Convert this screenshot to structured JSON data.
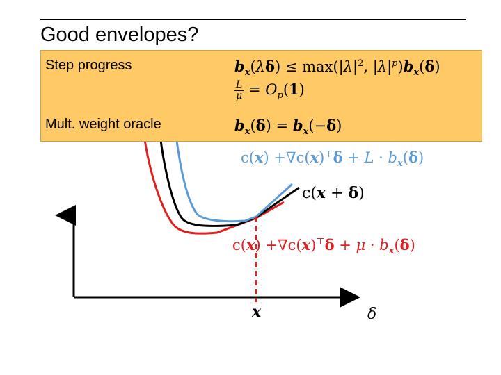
{
  "slide": {
    "title": "Good envelopes?"
  },
  "callout": {
    "row1_label": "Step progress",
    "row2_label": "Mult. weight oracle",
    "eq1": "b_x(λδ) ≤ max(|λ|^2, |λ|^p) b_x(δ)",
    "eq2": "L/μ = O_p(1)",
    "eq3": "b_x(δ) = b_x(−δ)"
  },
  "curves": {
    "upper_label": "c(x) +∇c(x)ᵀδ + L · b_x(δ)",
    "true_label": "c(x + δ)",
    "lower_label": "c(x) +∇c(x)ᵀδ + μ · b_x(δ)",
    "point_label": "x",
    "axis_label": "δ"
  },
  "colors": {
    "callout_bg": "#FFC965",
    "upper_curve": "#5B9BD5",
    "true_curve": "#000000",
    "lower_curve": "#E02020"
  }
}
